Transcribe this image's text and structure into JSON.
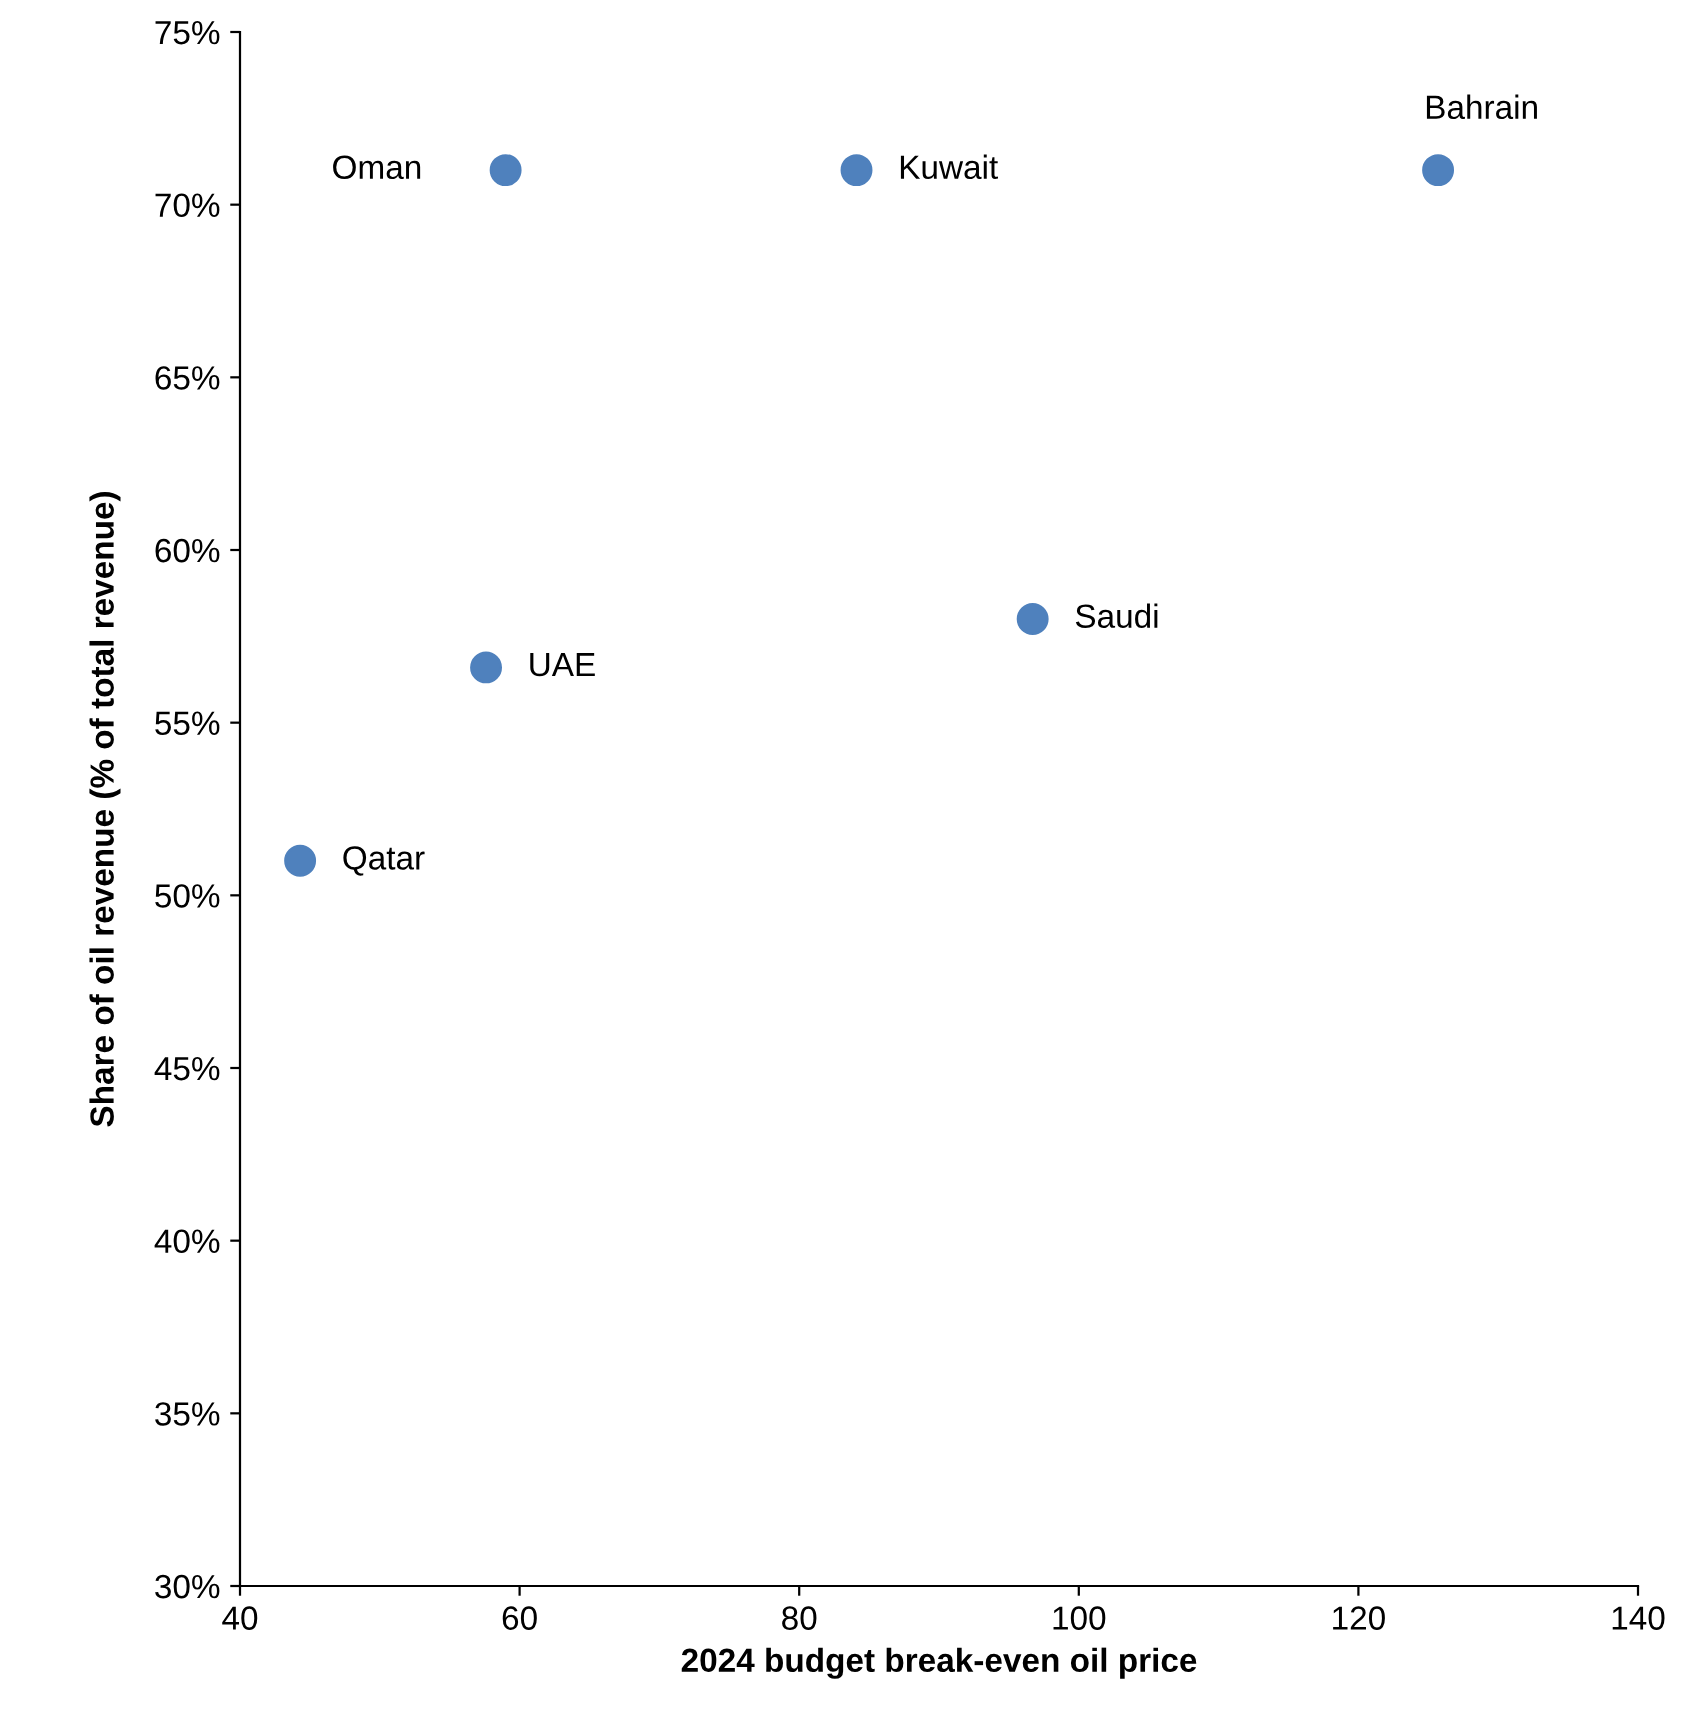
{
  "chart_data": {
    "type": "scatter",
    "xlabel": "2024 budget break-even oil price",
    "ylabel": "Share of oil revenue (% of total revenue)",
    "x": [
      59.0,
      84.1,
      125.7,
      96.7,
      57.6,
      44.3
    ],
    "values": [
      71.0,
      71.0,
      71.0,
      58.0,
      56.6,
      51.0
    ],
    "color": "#4f81bd",
    "marker": "circle",
    "xlim": [
      40,
      140
    ],
    "xticks": [
      40,
      60,
      80,
      100,
      120,
      140
    ],
    "ylim": [
      30,
      75
    ],
    "yticks": [
      {
        "value": 30,
        "label": "30%"
      },
      {
        "value": 35,
        "label": "35%"
      },
      {
        "value": 40,
        "label": "40%"
      },
      {
        "value": 45,
        "label": "45%"
      },
      {
        "value": 50,
        "label": "50%"
      },
      {
        "value": 55,
        "label": "55%"
      },
      {
        "value": 60,
        "label": "60%"
      },
      {
        "value": 65,
        "label": "65%"
      },
      {
        "value": 70,
        "label": "70%"
      },
      {
        "value": 75,
        "label": "75%"
      }
    ],
    "grid": false,
    "legend": false,
    "annotations": [
      {
        "text": "Oman",
        "x": 59.0,
        "y": 71.0
      },
      {
        "text": "Kuwait",
        "x": 84.1,
        "y": 71.0
      },
      {
        "text": "Bahrain",
        "x": 125.7,
        "y": 71.0
      },
      {
        "text": "Saudi",
        "x": 96.7,
        "y": 58.0
      },
      {
        "text": "UAE",
        "x": 57.6,
        "y": 56.6
      },
      {
        "text": "Qatar",
        "x": 44.3,
        "y": 51.0
      }
    ]
  }
}
